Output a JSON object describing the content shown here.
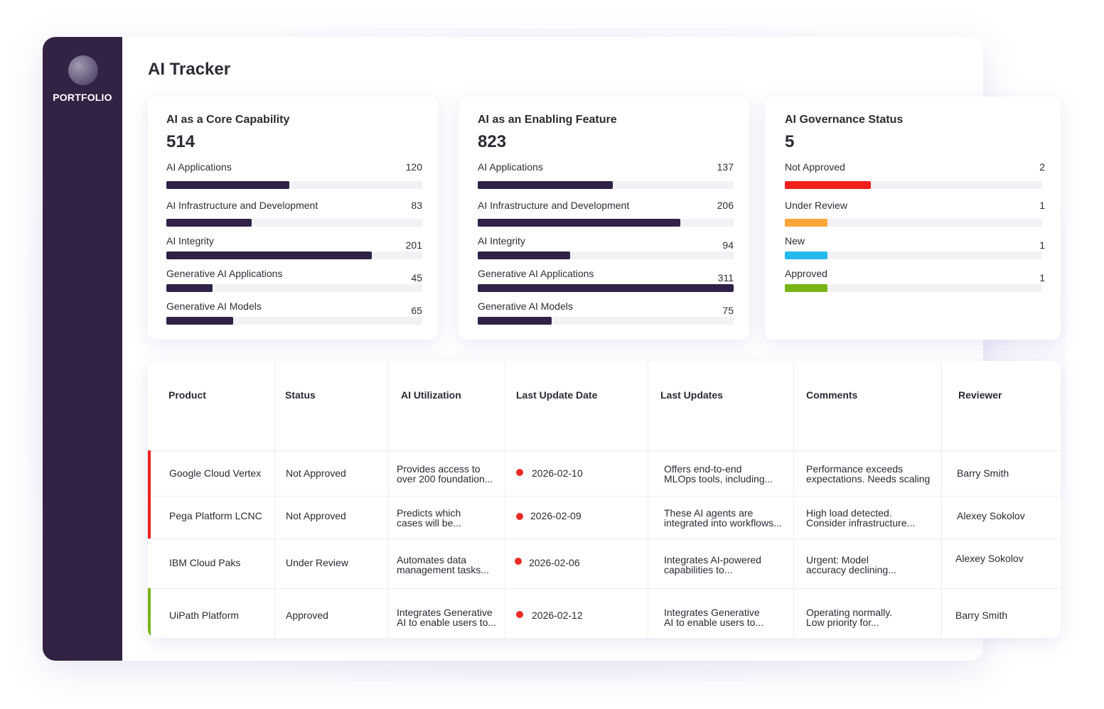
{
  "sidebar": {
    "logo_text": "PORTFOLIO"
  },
  "header": {
    "title": "AI Tracker"
  },
  "cards": [
    {
      "title": "AI as a Core Capability",
      "total": "514",
      "metrics": [
        {
          "label": "AI Applications",
          "value": "120"
        },
        {
          "label": "AI Infrastructure and Development",
          "value": "83"
        },
        {
          "label": "AI Integrity",
          "value": "201"
        },
        {
          "label": "Generative AI Applications",
          "value": "45"
        },
        {
          "label": "Generative AI Models",
          "value": "65"
        }
      ]
    },
    {
      "title": "AI as an Enabling Feature",
      "total": "823",
      "metrics": [
        {
          "label": "AI Applications",
          "value": "137"
        },
        {
          "label": "AI Infrastructure and Development",
          "value": "206"
        },
        {
          "label": "AI Integrity",
          "value": "94"
        },
        {
          "label": "Generative AI Applications",
          "value": "311"
        },
        {
          "label": "Generative AI Models",
          "value": "75"
        }
      ]
    },
    {
      "title": "AI Governance Status",
      "total": "5",
      "metrics": [
        {
          "label": "Not Approved",
          "value": "2",
          "color": "#f0201c"
        },
        {
          "label": "Under Review",
          "value": "1",
          "color": "#ffa63a"
        },
        {
          "label": "New",
          "value": "1",
          "color": "#27b9ee"
        },
        {
          "label": "Approved",
          "value": "1",
          "color": "#78b516"
        }
      ]
    }
  ],
  "table": {
    "headers": [
      "Product",
      "Status",
      "AI Utilization",
      "Last Update Date",
      "Last Updates",
      "Comments",
      "Reviewer"
    ],
    "rows": [
      {
        "product": "Google Cloud Vertex",
        "status": "Not Approved",
        "util1": "Provides access to",
        "util2": "over 200 foundation...",
        "date": "2026-02-10",
        "upd1": "Offers end-to-end",
        "upd2": "MLOps tools, including...",
        "com1": "Performance exceeds",
        "com2": "expectations. Needs scaling",
        "reviewer": "Barry Smith",
        "accent": "#f0201c"
      },
      {
        "product": "Pega Platform LCNC",
        "status": "Not Approved",
        "util1": "Predicts which",
        "util2": "cases will be...",
        "date": "2026-02-09",
        "upd1": "These AI agents are",
        "upd2": "integrated into workflows...",
        "com1": "High load detected.",
        "com2": "Consider infrastructure...",
        "reviewer": "Alexey Sokolov",
        "accent": "#f0201c"
      },
      {
        "product": "IBM Cloud Paks",
        "status": "Under Review",
        "util1": "Automates data",
        "util2": "management tasks...",
        "date": "2026-02-06",
        "upd1": "Integrates AI-powered",
        "upd2": "capabilities to...",
        "com1": "Urgent: Model",
        "com2": "accuracy declining...",
        "reviewer": "Alexey Sokolov",
        "accent": ""
      },
      {
        "product": "UiPath Platform",
        "status": "Approved",
        "util1": "Integrates Generative",
        "util2": "AI to enable users to...",
        "date": "2026-02-12",
        "upd1": "Integrates Generative",
        "upd2": "AI to enable users to...",
        "com1": "Operating normally.",
        "com2": "Low priority for...",
        "reviewer": "Barry Smith",
        "accent": "#78b516"
      }
    ]
  },
  "colors": {
    "sidebar": "#322244",
    "bar": "#2f2147",
    "dot": "#ee2a24"
  }
}
